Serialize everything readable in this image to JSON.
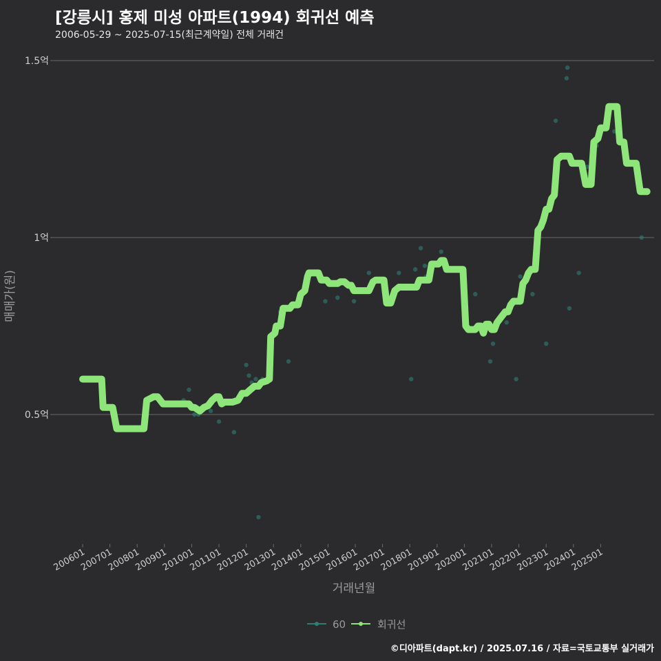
{
  "header": {
    "title": "[강릉시] 홍제 미성 아파트(1994) 회귀선 예측",
    "subtitle": "2006-05-29 ~ 2025-07-15(최근계약일) 전체 거래건"
  },
  "credit": "©디아파트(dapt.kr) / 2025.07.16 / 자료=국토교통부 실거래가",
  "colors": {
    "background": "#2b2b2d",
    "line": "#8ee67a",
    "points": "#2f7e73",
    "grid": "#6a6a6a"
  },
  "chart_data": {
    "type": "line",
    "title": "[강릉시] 홍제 미성 아파트(1994) 회귀선 예측",
    "xlabel": "거래년월",
    "ylabel": "매매가(원)",
    "ylim": [
      0.12,
      1.55
    ],
    "xlim": [
      2005.6,
      2026.1
    ],
    "yticks": [
      {
        "value": 0.5,
        "label": "0.5억"
      },
      {
        "value": 1.0,
        "label": "1억"
      },
      {
        "value": 1.5,
        "label": "1.5억"
      }
    ],
    "xticks": [
      "200601",
      "200701",
      "200801",
      "200901",
      "201001",
      "201101",
      "201201",
      "201301",
      "201401",
      "201501",
      "201601",
      "201701",
      "201801",
      "201901",
      "202001",
      "202101",
      "202201",
      "202301",
      "202401",
      "202501"
    ],
    "legend": {
      "position": "bottom",
      "entries": [
        "60",
        "회귀선"
      ]
    },
    "series": [
      {
        "name": "회귀선",
        "points": [
          [
            2006.0,
            0.6
          ],
          [
            2006.7,
            0.6
          ],
          [
            2006.75,
            0.52
          ],
          [
            2007.1,
            0.52
          ],
          [
            2007.25,
            0.46
          ],
          [
            2008.25,
            0.46
          ],
          [
            2008.35,
            0.54
          ],
          [
            2008.6,
            0.55
          ],
          [
            2008.75,
            0.55
          ],
          [
            2008.95,
            0.53
          ],
          [
            2009.3,
            0.53
          ],
          [
            2009.7,
            0.53
          ],
          [
            2009.9,
            0.53
          ],
          [
            2010.0,
            0.52
          ],
          [
            2010.1,
            0.52
          ],
          [
            2010.3,
            0.51
          ],
          [
            2010.45,
            0.52
          ],
          [
            2010.6,
            0.525
          ],
          [
            2010.75,
            0.54
          ],
          [
            2010.9,
            0.55
          ],
          [
            2011.0,
            0.55
          ],
          [
            2011.1,
            0.53
          ],
          [
            2011.2,
            0.535
          ],
          [
            2011.5,
            0.535
          ],
          [
            2011.7,
            0.54
          ],
          [
            2011.85,
            0.56
          ],
          [
            2012.0,
            0.56
          ],
          [
            2012.15,
            0.57
          ],
          [
            2012.3,
            0.58
          ],
          [
            2012.45,
            0.58
          ],
          [
            2012.55,
            0.59
          ],
          [
            2012.75,
            0.595
          ],
          [
            2012.85,
            0.6
          ],
          [
            2012.9,
            0.72
          ],
          [
            2013.05,
            0.73
          ],
          [
            2013.1,
            0.75
          ],
          [
            2013.25,
            0.75
          ],
          [
            2013.35,
            0.8
          ],
          [
            2013.6,
            0.8
          ],
          [
            2013.7,
            0.81
          ],
          [
            2013.9,
            0.81
          ],
          [
            2014.0,
            0.84
          ],
          [
            2014.15,
            0.85
          ],
          [
            2014.25,
            0.89
          ],
          [
            2014.3,
            0.9
          ],
          [
            2014.65,
            0.9
          ],
          [
            2014.75,
            0.88
          ],
          [
            2014.95,
            0.88
          ],
          [
            2015.05,
            0.87
          ],
          [
            2015.35,
            0.87
          ],
          [
            2015.45,
            0.875
          ],
          [
            2015.6,
            0.875
          ],
          [
            2015.75,
            0.865
          ],
          [
            2015.85,
            0.865
          ],
          [
            2015.95,
            0.85
          ],
          [
            2016.5,
            0.85
          ],
          [
            2016.65,
            0.875
          ],
          [
            2016.75,
            0.88
          ],
          [
            2017.05,
            0.88
          ],
          [
            2017.15,
            0.815
          ],
          [
            2017.3,
            0.815
          ],
          [
            2017.45,
            0.85
          ],
          [
            2017.6,
            0.86
          ],
          [
            2018.25,
            0.86
          ],
          [
            2018.35,
            0.88
          ],
          [
            2018.7,
            0.88
          ],
          [
            2018.8,
            0.925
          ],
          [
            2019.05,
            0.925
          ],
          [
            2019.15,
            0.935
          ],
          [
            2019.25,
            0.935
          ],
          [
            2019.35,
            0.91
          ],
          [
            2019.95,
            0.91
          ],
          [
            2020.05,
            0.75
          ],
          [
            2020.15,
            0.74
          ],
          [
            2020.4,
            0.74
          ],
          [
            2020.5,
            0.75
          ],
          [
            2020.6,
            0.75
          ],
          [
            2020.7,
            0.73
          ],
          [
            2020.8,
            0.755
          ],
          [
            2020.9,
            0.755
          ],
          [
            2021.0,
            0.74
          ],
          [
            2021.1,
            0.74
          ],
          [
            2021.2,
            0.76
          ],
          [
            2021.35,
            0.775
          ],
          [
            2021.5,
            0.79
          ],
          [
            2021.6,
            0.79
          ],
          [
            2021.7,
            0.81
          ],
          [
            2021.8,
            0.82
          ],
          [
            2022.05,
            0.82
          ],
          [
            2022.15,
            0.87
          ],
          [
            2022.25,
            0.88
          ],
          [
            2022.35,
            0.9
          ],
          [
            2022.45,
            0.91
          ],
          [
            2022.6,
            0.91
          ],
          [
            2022.7,
            1.02
          ],
          [
            2022.8,
            1.03
          ],
          [
            2022.9,
            1.05
          ],
          [
            2023.0,
            1.08
          ],
          [
            2023.1,
            1.08
          ],
          [
            2023.2,
            1.11
          ],
          [
            2023.3,
            1.12
          ],
          [
            2023.4,
            1.22
          ],
          [
            2023.55,
            1.23
          ],
          [
            2023.85,
            1.23
          ],
          [
            2023.95,
            1.21
          ],
          [
            2024.3,
            1.21
          ],
          [
            2024.45,
            1.15
          ],
          [
            2024.65,
            1.15
          ],
          [
            2024.75,
            1.27
          ],
          [
            2024.9,
            1.28
          ],
          [
            2025.0,
            1.31
          ],
          [
            2025.2,
            1.31
          ],
          [
            2025.3,
            1.37
          ],
          [
            2025.6,
            1.37
          ],
          [
            2025.7,
            1.27
          ],
          [
            2025.85,
            1.27
          ],
          [
            2025.95,
            1.21
          ],
          [
            2026.3,
            1.21
          ],
          [
            2026.45,
            1.13
          ],
          [
            2026.7,
            1.13
          ]
        ]
      },
      {
        "name": "60",
        "points": [
          [
            2009.7,
            0.54
          ],
          [
            2009.9,
            0.57
          ],
          [
            2010.1,
            0.5
          ],
          [
            2010.25,
            0.5
          ],
          [
            2010.7,
            0.51
          ],
          [
            2011.0,
            0.48
          ],
          [
            2011.55,
            0.45
          ],
          [
            2012.0,
            0.64
          ],
          [
            2012.1,
            0.61
          ],
          [
            2012.2,
            0.59
          ],
          [
            2012.35,
            0.6
          ],
          [
            2012.45,
            0.21
          ],
          [
            2012.6,
            0.6
          ],
          [
            2013.25,
            0.79
          ],
          [
            2013.55,
            0.65
          ],
          [
            2014.45,
            0.9
          ],
          [
            2014.9,
            0.82
          ],
          [
            2015.35,
            0.83
          ],
          [
            2015.95,
            0.82
          ],
          [
            2016.1,
            0.85
          ],
          [
            2016.5,
            0.9
          ],
          [
            2016.9,
            0.88
          ],
          [
            2017.6,
            0.9
          ],
          [
            2018.05,
            0.6
          ],
          [
            2018.2,
            0.91
          ],
          [
            2018.4,
            0.97
          ],
          [
            2018.55,
            0.92
          ],
          [
            2018.6,
            0.89
          ],
          [
            2019.15,
            0.96
          ],
          [
            2020.4,
            0.84
          ],
          [
            2020.7,
            0.75
          ],
          [
            2020.95,
            0.65
          ],
          [
            2021.05,
            0.7
          ],
          [
            2021.55,
            0.76
          ],
          [
            2021.9,
            0.6
          ],
          [
            2022.05,
            0.89
          ],
          [
            2022.5,
            0.84
          ],
          [
            2023.0,
            0.7
          ],
          [
            2023.35,
            1.33
          ],
          [
            2023.75,
            1.45
          ],
          [
            2023.78,
            1.48
          ],
          [
            2023.85,
            0.8
          ],
          [
            2024.2,
            0.9
          ],
          [
            2024.5,
            1.2
          ],
          [
            2024.85,
            1.26
          ],
          [
            2025.5,
            1.3
          ],
          [
            2025.85,
            1.26
          ],
          [
            2026.5,
            1.0
          ]
        ]
      }
    ]
  }
}
